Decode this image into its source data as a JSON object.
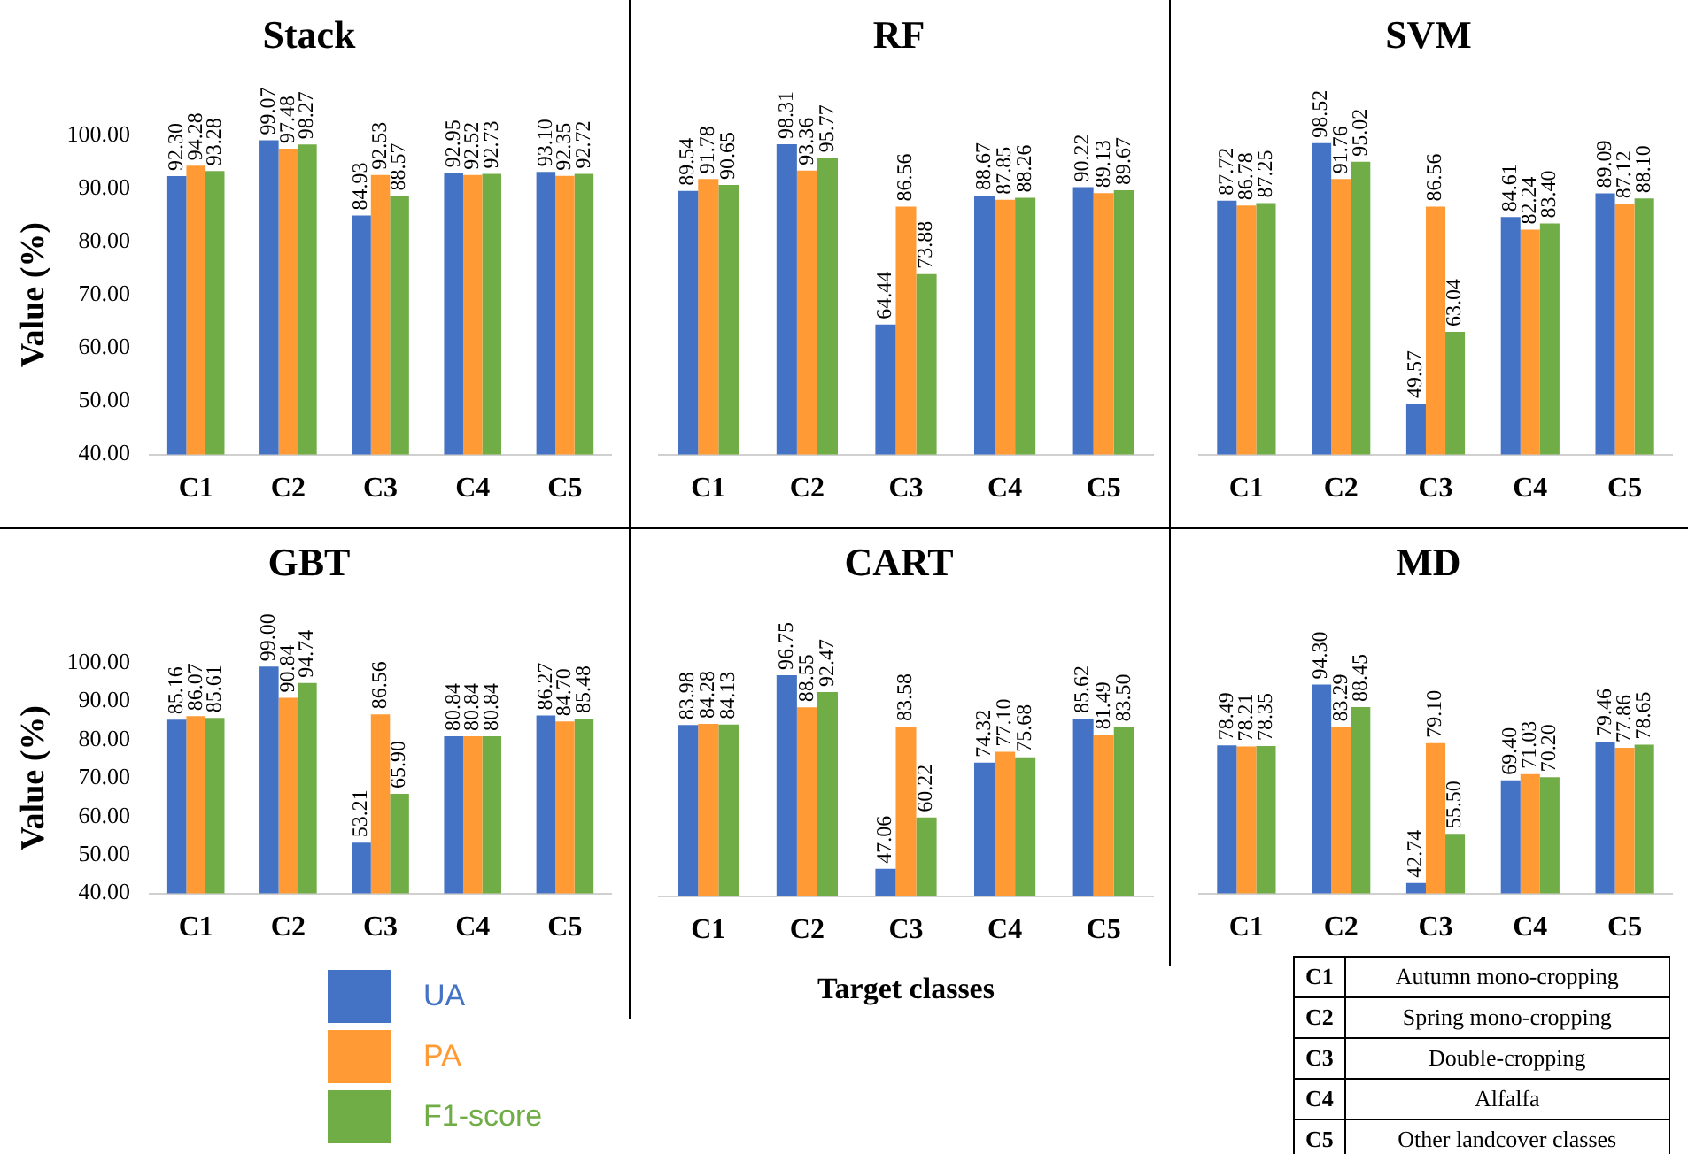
{
  "chart_data": [
    {
      "type": "bar",
      "title": "Stack",
      "ylabel": "Value (%)",
      "categories": [
        "C1",
        "C2",
        "C3",
        "C4",
        "C5"
      ],
      "series": [
        {
          "color": "#4472c4",
          "values": [
            92.3,
            99.07,
            84.93,
            92.95,
            93.1
          ],
          "value_labels": [
            "92.30",
            "99.07",
            "84.93",
            "92.95",
            "93.10"
          ]
        },
        {
          "color": "#ff9a35",
          "values": [
            94.28,
            97.48,
            92.53,
            92.52,
            92.35
          ],
          "value_labels": [
            "94.28",
            "97.48",
            "92.53",
            "92.52",
            "92.35"
          ]
        },
        {
          "color": "#70ad47",
          "values": [
            93.28,
            98.27,
            88.57,
            92.73,
            92.72
          ],
          "value_labels": [
            "93.28",
            "98.27",
            "88.57",
            "92.73",
            "92.72"
          ]
        }
      ],
      "ylim": [
        40,
        100
      ],
      "yticks": [
        {
          "value": 40,
          "label": "40.00"
        },
        {
          "value": 50,
          "label": "50.00"
        },
        {
          "value": 60,
          "label": "60.00"
        },
        {
          "value": 70,
          "label": "70.00"
        },
        {
          "value": 80,
          "label": "80.00"
        },
        {
          "value": 90,
          "label": "90.00"
        },
        {
          "value": 100,
          "label": "100.00"
        }
      ],
      "grid": false,
      "legend": false
    },
    {
      "type": "bar",
      "title": "RF",
      "categories": [
        "C1",
        "C2",
        "C3",
        "C4",
        "C5"
      ],
      "series": [
        {
          "color": "#4472c4",
          "values": [
            89.54,
            98.31,
            64.44,
            88.67,
            90.22
          ],
          "value_labels": [
            "89.54",
            "98.31",
            "64.44",
            "88.67",
            "90.22"
          ]
        },
        {
          "color": "#ff9a35",
          "values": [
            91.78,
            93.36,
            86.56,
            87.85,
            89.13
          ],
          "value_labels": [
            "91.78",
            "93.36",
            "86.56",
            "87.85",
            "89.13"
          ]
        },
        {
          "color": "#70ad47",
          "values": [
            90.65,
            95.77,
            73.88,
            88.26,
            89.67
          ],
          "value_labels": [
            "90.65",
            "95.77",
            "73.88",
            "88.26",
            "89.67"
          ]
        }
      ],
      "ylim": [
        40,
        100
      ],
      "tick_labels": "x",
      "grid": false,
      "legend": false
    },
    {
      "type": "bar",
      "title": "SVM",
      "categories": [
        "C1",
        "C2",
        "C3",
        "C4",
        "C5"
      ],
      "series": [
        {
          "color": "#4472c4",
          "values": [
            87.72,
            98.52,
            49.57,
            84.61,
            89.09
          ],
          "value_labels": [
            "87.72",
            "98.52",
            "49.57",
            "84.61",
            "89.09"
          ]
        },
        {
          "color": "#ff9a35",
          "values": [
            86.78,
            91.76,
            86.56,
            82.24,
            87.12
          ],
          "value_labels": [
            "86.78",
            "91.76",
            "86.56",
            "82.24",
            "87.12"
          ]
        },
        {
          "color": "#70ad47",
          "values": [
            87.25,
            95.02,
            63.04,
            83.4,
            88.1
          ],
          "value_labels": [
            "87.25",
            "95.02",
            "63.04",
            "83.40",
            "88.10"
          ]
        }
      ],
      "ylim": [
        40,
        100
      ],
      "tick_labels": "x",
      "grid": false,
      "legend": false
    },
    {
      "type": "bar",
      "title": "GBT",
      "ylabel": "Value (%)",
      "categories": [
        "C1",
        "C2",
        "C3",
        "C4",
        "C5"
      ],
      "series": [
        {
          "name": "UA",
          "color": "#4472c4",
          "values": [
            85.16,
            99.0,
            53.21,
            80.84,
            86.27
          ],
          "value_labels": [
            "85.16",
            "99.00",
            "53.21",
            "80.84",
            "86.27"
          ]
        },
        {
          "name": "PA",
          "color": "#ff9a35",
          "values": [
            86.07,
            90.84,
            86.56,
            80.84,
            84.7
          ],
          "value_labels": [
            "86.07",
            "90.84",
            "86.56",
            "80.84",
            "84.70"
          ]
        },
        {
          "name": "F1-score",
          "color": "#70ad47",
          "values": [
            85.61,
            94.74,
            65.9,
            80.84,
            85.48
          ],
          "value_labels": [
            "85.61",
            "94.74",
            "65.90",
            "80.84",
            "85.48"
          ]
        }
      ],
      "ylim": [
        40,
        100
      ],
      "yticks": [
        {
          "value": 40,
          "label": "40.00"
        },
        {
          "value": 50,
          "label": "50.00"
        },
        {
          "value": 60,
          "label": "60.00"
        },
        {
          "value": 70,
          "label": "70.00"
        },
        {
          "value": 80,
          "label": "80.00"
        },
        {
          "value": 90,
          "label": "90.00"
        },
        {
          "value": 100,
          "label": "100.00"
        }
      ],
      "grid": false,
      "legend": "bottom"
    },
    {
      "type": "bar",
      "title": "CART",
      "xlabel": "Target classes",
      "categories": [
        "C1",
        "C2",
        "C3",
        "C4",
        "C5"
      ],
      "series": [
        {
          "color": "#4472c4",
          "values": [
            83.98,
            96.75,
            47.06,
            74.32,
            85.62
          ],
          "value_labels": [
            "83.98",
            "96.75",
            "47.06",
            "74.32",
            "85.62"
          ]
        },
        {
          "color": "#ff9a35",
          "values": [
            84.28,
            88.55,
            83.58,
            77.1,
            81.49
          ],
          "value_labels": [
            "84.28",
            "88.55",
            "83.58",
            "77.10",
            "81.49"
          ]
        },
        {
          "color": "#70ad47",
          "values": [
            84.13,
            92.47,
            60.22,
            75.68,
            83.5
          ],
          "value_labels": [
            "84.13",
            "92.47",
            "60.22",
            "75.68",
            "83.50"
          ]
        }
      ],
      "ylim": [
        40,
        100
      ],
      "tick_labels": "x",
      "grid": false,
      "legend": false
    },
    {
      "type": "bar",
      "title": "MD",
      "categories": [
        "C1",
        "C2",
        "C3",
        "C4",
        "C5"
      ],
      "series": [
        {
          "color": "#4472c4",
          "values": [
            78.49,
            94.3,
            42.74,
            69.4,
            79.46
          ],
          "value_labels": [
            "78.49",
            "94.30",
            "42.74",
            "69.40",
            "79.46"
          ]
        },
        {
          "color": "#ff9a35",
          "values": [
            78.21,
            83.29,
            79.1,
            71.03,
            77.86
          ],
          "value_labels": [
            "78.21",
            "83.29",
            "79.10",
            "71.03",
            "77.86"
          ]
        },
        {
          "color": "#70ad47",
          "values": [
            78.35,
            88.45,
            55.5,
            70.2,
            78.65
          ],
          "value_labels": [
            "78.35",
            "88.45",
            "55.50",
            "70.20",
            "78.65"
          ]
        }
      ],
      "ylim": [
        40,
        100
      ],
      "tick_labels": "x",
      "grid": false,
      "legend": false
    },
    {
      "type": "other",
      "annotations": [
        "C1",
        "Autumn mono-cropping",
        "C2",
        "Spring mono-cropping",
        "C3",
        "Double-cropping",
        "C4",
        "Alfalfa",
        "C5",
        "Other landcover classes"
      ]
    }
  ]
}
